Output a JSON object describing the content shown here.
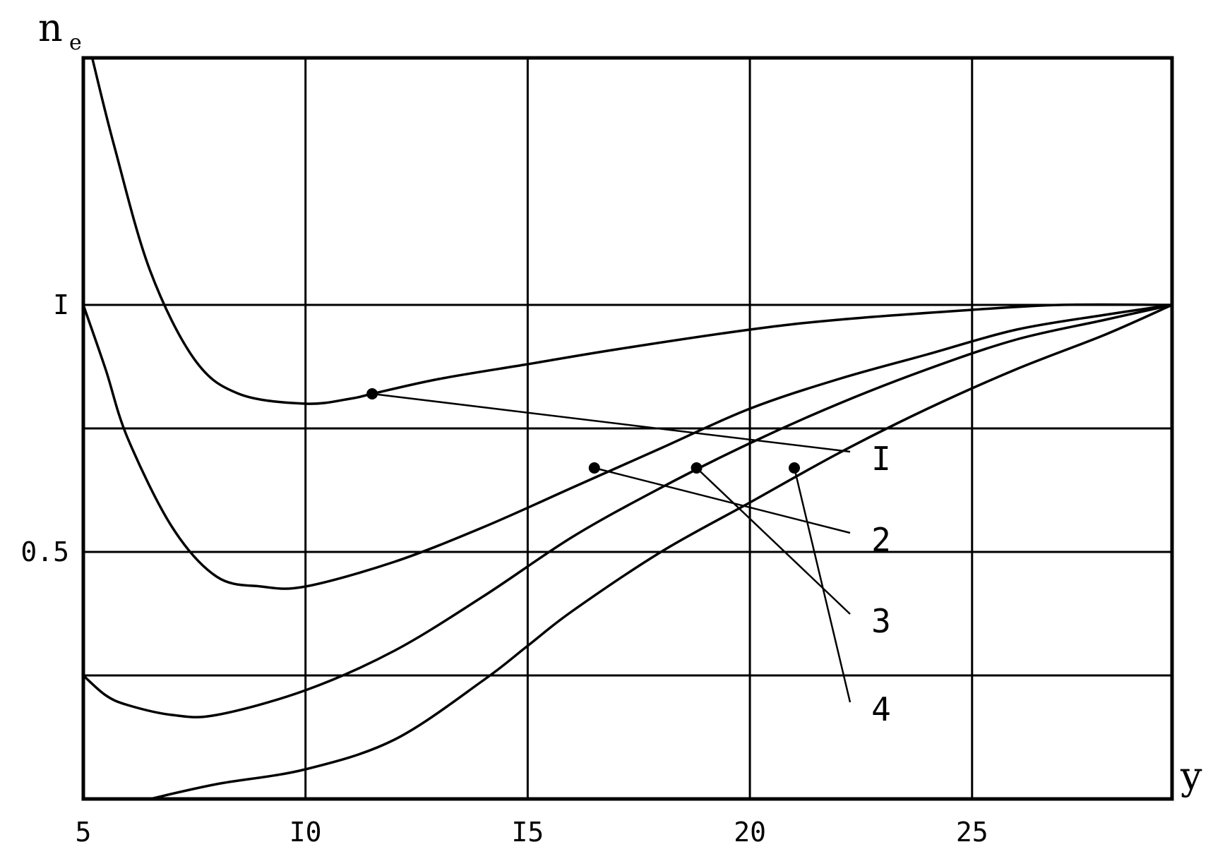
{
  "chart_data": {
    "type": "line",
    "title": "",
    "xlabel": "y",
    "ylabel": "n",
    "ylabel_subscript": "e",
    "xlim": [
      5,
      29.5
    ],
    "ylim": [
      0,
      1.5
    ],
    "x_ticks": [
      5,
      10,
      15,
      20,
      25
    ],
    "x_tick_labels": [
      "5",
      "I0",
      "I5",
      "20",
      "25"
    ],
    "y_ticks": [
      0.5,
      1
    ],
    "y_tick_labels": [
      "0.5",
      "I"
    ],
    "grid": true,
    "grid_x": [
      10,
      15,
      20,
      25
    ],
    "grid_y": [
      0.25,
      0.5,
      0.75,
      1.0
    ],
    "series": [
      {
        "name": "I",
        "x": [
          5.2,
          5.7,
          6.5,
          7.5,
          8.5,
          10.0,
          11.0,
          11.5,
          13,
          15,
          17,
          20,
          22,
          25,
          27,
          29.5
        ],
        "y": [
          1.5,
          1.32,
          1.07,
          0.89,
          0.82,
          0.8,
          0.81,
          0.82,
          0.85,
          0.88,
          0.91,
          0.95,
          0.97,
          0.99,
          1.0,
          1.0
        ],
        "marker": {
          "x": 11.5,
          "y": 0.82
        }
      },
      {
        "name": "2",
        "x": [
          5.0,
          5.5,
          6.0,
          7.0,
          8.0,
          9.0,
          10.0,
          12.0,
          14.0,
          16.0,
          18.0,
          20.0,
          22.0,
          24.0,
          26.0,
          28.0,
          29.5
        ],
        "y": [
          1.0,
          0.87,
          0.73,
          0.55,
          0.45,
          0.43,
          0.43,
          0.48,
          0.55,
          0.63,
          0.71,
          0.79,
          0.85,
          0.9,
          0.95,
          0.98,
          1.0
        ],
        "marker": {
          "x": 16.5,
          "y": 0.67
        }
      },
      {
        "name": "3",
        "x": [
          5.0,
          5.5,
          6.0,
          7.0,
          8.0,
          10.0,
          12.0,
          14.0,
          16.0,
          18.0,
          20.0,
          22.0,
          24.0,
          26.0,
          28.0,
          29.5
        ],
        "y": [
          0.25,
          0.21,
          0.19,
          0.17,
          0.17,
          0.22,
          0.3,
          0.41,
          0.53,
          0.63,
          0.72,
          0.8,
          0.87,
          0.93,
          0.97,
          1.0
        ],
        "marker": {
          "x": 18.8,
          "y": 0.67
        }
      },
      {
        "name": "4",
        "x": [
          6.5,
          8.0,
          10.0,
          12.0,
          14.0,
          15.0,
          16.0,
          18.0,
          20.0,
          22.0,
          24.0,
          26.0,
          28.0,
          29.5
        ],
        "y": [
          0.0,
          0.03,
          0.06,
          0.12,
          0.24,
          0.31,
          0.38,
          0.5,
          0.6,
          0.7,
          0.79,
          0.87,
          0.94,
          1.0
        ],
        "marker": {
          "x": 21.0,
          "y": 0.67
        }
      }
    ]
  }
}
